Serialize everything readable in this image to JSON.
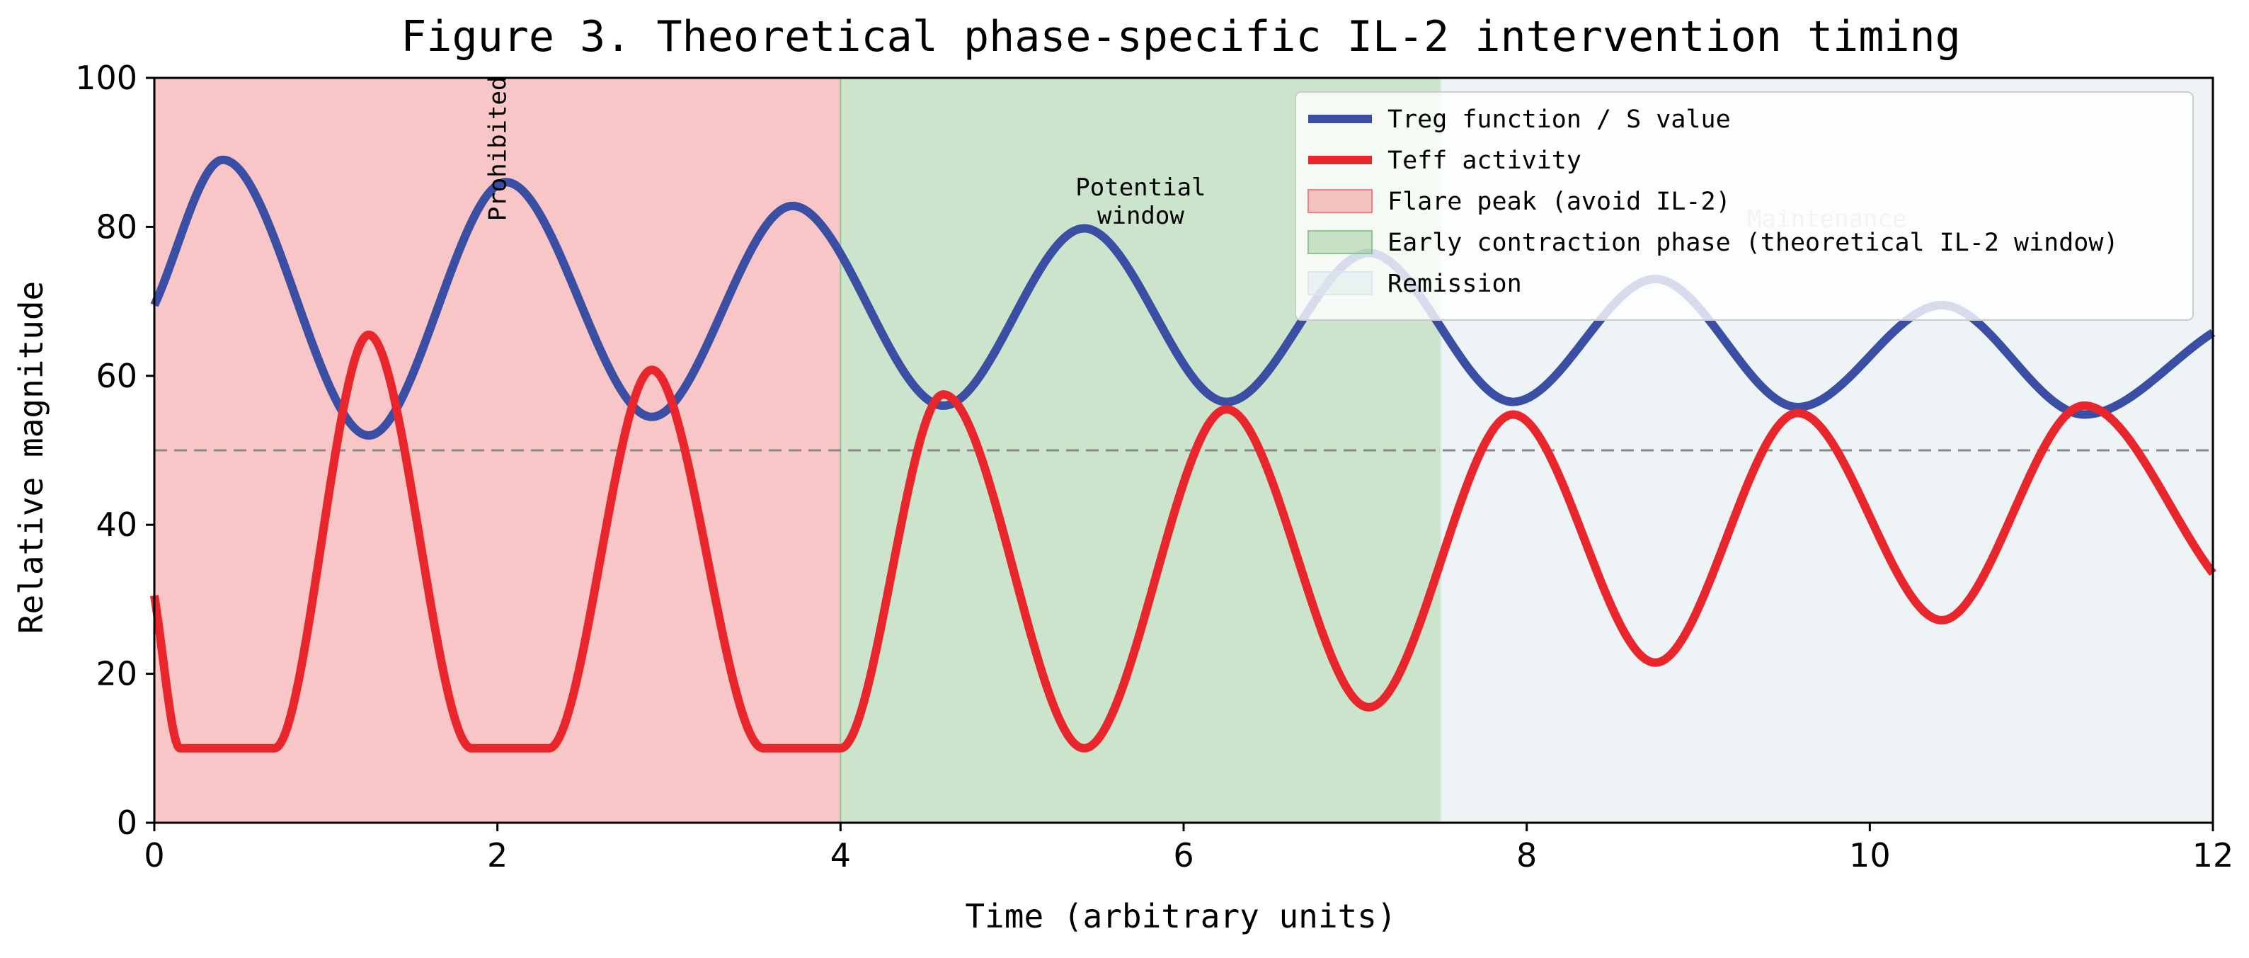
{
  "chart_data": {
    "type": "line",
    "title": "Figure 3. Theoretical phase-specific IL-2 intervention timing",
    "xlabel": "Time (arbitrary units)",
    "ylabel": "Relative magnitude",
    "xlim": [
      0,
      12
    ],
    "ylim": [
      0,
      100
    ],
    "xticks": [
      0,
      2,
      4,
      6,
      8,
      10,
      12
    ],
    "yticks": [
      0,
      20,
      40,
      60,
      80,
      100
    ],
    "grid": false,
    "legend_position": "top-right",
    "reference_line": {
      "y": 50,
      "style": "dashed",
      "color": "#888888"
    },
    "phases": [
      {
        "name": "Flare peak (avoid IL-2)",
        "x": [
          0,
          4
        ],
        "color": "#f08080",
        "annotation": "Prohibited"
      },
      {
        "name": "Early contraction phase (theoretical IL-2 window)",
        "x": [
          4,
          7.5
        ],
        "color": "#8fc48f",
        "annotation": "Potential\nwindow"
      },
      {
        "name": "Remission",
        "x": [
          7.5,
          12
        ],
        "color": "#dde8ee",
        "annotation": "Maintenance"
      }
    ],
    "series": [
      {
        "name": "Treg function / S value",
        "color": "#3a4fa3",
        "x": [
          0,
          0.4,
          1.25,
          2.05,
          2.9,
          3.72,
          4.6,
          5.42,
          6.25,
          7.08,
          7.92,
          8.75,
          9.58,
          10.42,
          11.25,
          12
        ],
        "y": [
          69.5,
          89,
          52,
          86,
          54.5,
          82.8,
          56,
          79.8,
          56.5,
          76.5,
          56.5,
          73,
          55.8,
          69.5,
          54.8,
          65.8
        ]
      },
      {
        "name": "Teff activity",
        "color": "#e8262b",
        "x": [
          0,
          0.15,
          0.7,
          1.25,
          1.85,
          2.3,
          2.9,
          3.55,
          4.0,
          4.6,
          5.42,
          6.25,
          7.08,
          7.92,
          8.75,
          9.58,
          10.42,
          11.25,
          12
        ],
        "y": [
          30.5,
          10,
          10,
          65.5,
          10,
          10,
          60.8,
          10,
          10,
          57.5,
          10,
          55.5,
          15.5,
          54.8,
          21.5,
          55,
          27.2,
          56,
          33.5
        ]
      }
    ]
  }
}
